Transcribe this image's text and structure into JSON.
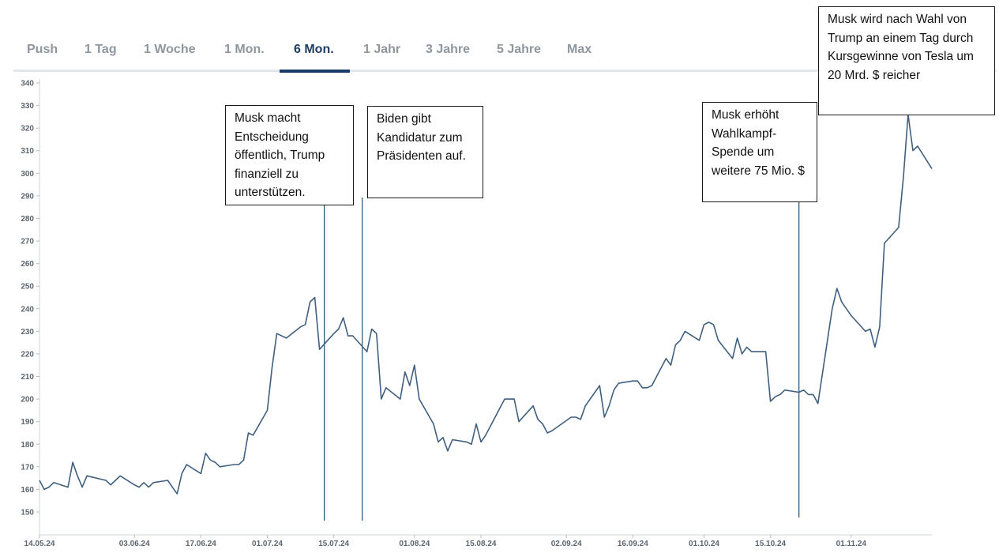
{
  "tabs": [
    {
      "label": "Push",
      "active": false
    },
    {
      "label": "1 Tag",
      "active": false
    },
    {
      "label": "1 Woche",
      "active": false
    },
    {
      "label": "1 Mon.",
      "active": false
    },
    {
      "label": "6 Mon.",
      "active": true
    },
    {
      "label": "1 Jahr",
      "active": false
    },
    {
      "label": "3 Jahre",
      "active": false
    },
    {
      "label": "5 Jahre",
      "active": false
    },
    {
      "label": "Max",
      "active": false
    }
  ],
  "annotations": [
    {
      "text": "Musk macht Entscheidung öffentlich, Trump finanziell zu unterstützen.",
      "date": "2024-07-13"
    },
    {
      "text": "Biden gibt Kandidatur zum Präsidenten auf.",
      "date": "2024-07-21"
    },
    {
      "text": "Musk erhöht Wahlkampf-Spende um weitere 75 Mio. $",
      "date": "2024-10-21"
    },
    {
      "text": "Musk wird nach Wahl von Trump an einem Tag durch Kursgewinne von Tesla um 20 Mrd. $ reicher",
      "date": ""
    }
  ],
  "colors": {
    "line": "#3f5f7f",
    "marker_line": "#1d4f79",
    "tab_active": "#1f3d63",
    "tab_inactive": "#8e969e"
  },
  "chart_data": {
    "type": "line",
    "title": "",
    "xlabel": "",
    "ylabel": "",
    "ylim": [
      145,
      345
    ],
    "yticks": [
      150,
      160,
      170,
      180,
      190,
      200,
      210,
      220,
      230,
      240,
      250,
      260,
      270,
      280,
      290,
      300,
      310,
      320,
      330,
      340
    ],
    "xticks": [
      {
        "date": "2024-05-14",
        "label": "14.05.24"
      },
      {
        "date": "2024-06-03",
        "label": "03.06.24"
      },
      {
        "date": "2024-06-17",
        "label": "17.06.24"
      },
      {
        "date": "2024-07-01",
        "label": "01.07.24"
      },
      {
        "date": "2024-07-15",
        "label": "15.07.24"
      },
      {
        "date": "2024-08-01",
        "label": "01.08.24"
      },
      {
        "date": "2024-08-15",
        "label": "15.08.24"
      },
      {
        "date": "2024-09-02",
        "label": "02.09.24"
      },
      {
        "date": "2024-09-16",
        "label": "16.09.24"
      },
      {
        "date": "2024-10-01",
        "label": "01.10.24"
      },
      {
        "date": "2024-10-15",
        "label": "15.10.24"
      },
      {
        "date": "2024-11-01",
        "label": "01.11.24"
      }
    ],
    "grid": false,
    "legend": "none",
    "series": [
      {
        "values": [
          [
            "2024-05-14",
            164
          ],
          [
            "2024-05-15",
            160
          ],
          [
            "2024-05-16",
            161
          ],
          [
            "2024-05-17",
            163
          ],
          [
            "2024-05-20",
            161
          ],
          [
            "2024-05-21",
            172
          ],
          [
            "2024-05-22",
            166
          ],
          [
            "2024-05-23",
            161
          ],
          [
            "2024-05-24",
            166
          ],
          [
            "2024-05-28",
            164
          ],
          [
            "2024-05-29",
            162
          ],
          [
            "2024-05-30",
            164
          ],
          [
            "2024-05-31",
            166
          ],
          [
            "2024-06-03",
            162
          ],
          [
            "2024-06-04",
            161
          ],
          [
            "2024-06-05",
            163
          ],
          [
            "2024-06-06",
            161
          ],
          [
            "2024-06-07",
            163
          ],
          [
            "2024-06-10",
            164
          ],
          [
            "2024-06-11",
            161
          ],
          [
            "2024-06-12",
            158
          ],
          [
            "2024-06-13",
            167
          ],
          [
            "2024-06-14",
            171
          ],
          [
            "2024-06-17",
            167
          ],
          [
            "2024-06-18",
            176
          ],
          [
            "2024-06-19",
            173
          ],
          [
            "2024-06-20",
            172
          ],
          [
            "2024-06-21",
            170
          ],
          [
            "2024-06-24",
            171
          ],
          [
            "2024-06-25",
            171
          ],
          [
            "2024-06-26",
            173
          ],
          [
            "2024-06-27",
            185
          ],
          [
            "2024-06-28",
            184
          ],
          [
            "2024-07-01",
            195
          ],
          [
            "2024-07-02",
            214
          ],
          [
            "2024-07-03",
            229
          ],
          [
            "2024-07-05",
            227
          ],
          [
            "2024-07-08",
            232
          ],
          [
            "2024-07-09",
            233
          ],
          [
            "2024-07-10",
            243
          ],
          [
            "2024-07-11",
            245
          ],
          [
            "2024-07-12",
            222
          ],
          [
            "2024-07-15",
            229
          ],
          [
            "2024-07-16",
            231
          ],
          [
            "2024-07-17",
            236
          ],
          [
            "2024-07-18",
            228
          ],
          [
            "2024-07-19",
            228
          ],
          [
            "2024-07-22",
            221
          ],
          [
            "2024-07-23",
            231
          ],
          [
            "2024-07-24",
            229
          ],
          [
            "2024-07-25",
            200
          ],
          [
            "2024-07-26",
            205
          ],
          [
            "2024-07-29",
            200
          ],
          [
            "2024-07-30",
            212
          ],
          [
            "2024-07-31",
            206
          ],
          [
            "2024-08-01",
            215
          ],
          [
            "2024-08-02",
            200
          ],
          [
            "2024-08-05",
            189
          ],
          [
            "2024-08-06",
            181
          ],
          [
            "2024-08-07",
            183
          ],
          [
            "2024-08-08",
            177
          ],
          [
            "2024-08-09",
            182
          ],
          [
            "2024-08-12",
            181
          ],
          [
            "2024-08-13",
            180
          ],
          [
            "2024-08-14",
            189
          ],
          [
            "2024-08-15",
            181
          ],
          [
            "2024-08-16",
            184
          ],
          [
            "2024-08-19",
            196
          ],
          [
            "2024-08-20",
            200
          ],
          [
            "2024-08-21",
            200
          ],
          [
            "2024-08-22",
            200
          ],
          [
            "2024-08-23",
            190
          ],
          [
            "2024-08-26",
            197
          ],
          [
            "2024-08-27",
            191
          ],
          [
            "2024-08-28",
            189
          ],
          [
            "2024-08-29",
            185
          ],
          [
            "2024-08-30",
            186
          ],
          [
            "2024-09-03",
            192
          ],
          [
            "2024-09-04",
            192
          ],
          [
            "2024-09-05",
            191
          ],
          [
            "2024-09-06",
            197
          ],
          [
            "2024-09-09",
            206
          ],
          [
            "2024-09-10",
            192
          ],
          [
            "2024-09-11",
            197
          ],
          [
            "2024-09-12",
            204
          ],
          [
            "2024-09-13",
            207
          ],
          [
            "2024-09-16",
            208
          ],
          [
            "2024-09-17",
            208
          ],
          [
            "2024-09-18",
            205
          ],
          [
            "2024-09-19",
            205
          ],
          [
            "2024-09-20",
            206
          ],
          [
            "2024-09-23",
            218
          ],
          [
            "2024-09-24",
            215
          ],
          [
            "2024-09-25",
            224
          ],
          [
            "2024-09-26",
            226
          ],
          [
            "2024-09-27",
            230
          ],
          [
            "2024-09-30",
            226
          ],
          [
            "2024-10-01",
            233
          ],
          [
            "2024-10-02",
            234
          ],
          [
            "2024-10-03",
            233
          ],
          [
            "2024-10-04",
            226
          ],
          [
            "2024-10-07",
            218
          ],
          [
            "2024-10-08",
            227
          ],
          [
            "2024-10-09",
            220
          ],
          [
            "2024-10-10",
            223
          ],
          [
            "2024-10-11",
            221
          ],
          [
            "2024-10-14",
            221
          ],
          [
            "2024-10-15",
            199
          ],
          [
            "2024-10-16",
            201
          ],
          [
            "2024-10-17",
            202
          ],
          [
            "2024-10-18",
            204
          ],
          [
            "2024-10-21",
            203
          ],
          [
            "2024-10-22",
            204
          ],
          [
            "2024-10-23",
            202
          ],
          [
            "2024-10-24",
            202
          ],
          [
            "2024-10-25",
            198
          ],
          [
            "2024-10-28",
            240
          ],
          [
            "2024-10-29",
            249
          ],
          [
            "2024-10-30",
            243
          ],
          [
            "2024-10-31",
            240
          ],
          [
            "2024-11-01",
            237
          ],
          [
            "2024-11-04",
            230
          ],
          [
            "2024-11-05",
            231
          ],
          [
            "2024-11-06",
            223
          ],
          [
            "2024-11-07",
            232
          ],
          [
            "2024-11-08",
            269
          ],
          [
            "2024-11-11",
            276
          ],
          [
            "2024-11-12",
            298
          ],
          [
            "2024-11-13",
            326
          ],
          [
            "2024-11-14",
            310
          ],
          [
            "2024-11-15",
            312
          ],
          [
            "2024-11-18",
            302
          ]
        ]
      }
    ]
  }
}
